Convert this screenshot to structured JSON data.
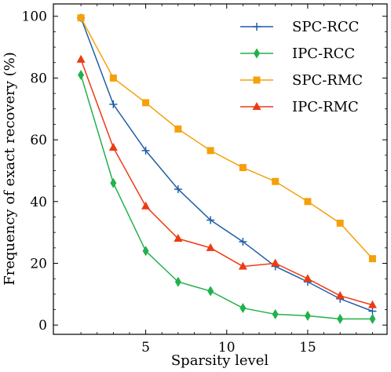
{
  "chart_data": {
    "type": "line",
    "xlabel": "Sparsity level",
    "ylabel": "Frequency of exact recovery (%)",
    "xlim": [
      -0.7,
      19.9
    ],
    "ylim": [
      -3,
      104
    ],
    "xticks": [
      5,
      10,
      15
    ],
    "yticks": [
      0,
      20,
      40,
      60,
      80,
      100
    ],
    "legend_position": "top-right",
    "x": [
      1,
      3,
      5,
      7,
      9,
      11,
      13,
      15,
      17,
      19
    ],
    "series": [
      {
        "name": "SPC-RCC",
        "color": "#1f5fa6",
        "marker": "plus",
        "values": [
          99.5,
          71.5,
          56.5,
          44.0,
          34.0,
          27.0,
          19.0,
          14.0,
          8.5,
          4.5
        ]
      },
      {
        "name": "IPC-RCC",
        "color": "#22b14c",
        "marker": "diamond",
        "values": [
          81.0,
          46.0,
          24.0,
          14.0,
          11.0,
          5.5,
          3.5,
          3.0,
          2.0,
          2.0
        ]
      },
      {
        "name": "SPC-RMC",
        "color": "#f5a00a",
        "marker": "square",
        "values": [
          99.5,
          80.0,
          72.0,
          63.5,
          56.5,
          51.0,
          46.5,
          40.0,
          33.0,
          21.5
        ]
      },
      {
        "name": "IPC-RMC",
        "color": "#ee3a14",
        "marker": "triangle",
        "values": [
          86.0,
          57.5,
          38.5,
          28.0,
          25.0,
          19.0,
          20.0,
          15.0,
          9.5,
          6.5
        ]
      }
    ]
  }
}
